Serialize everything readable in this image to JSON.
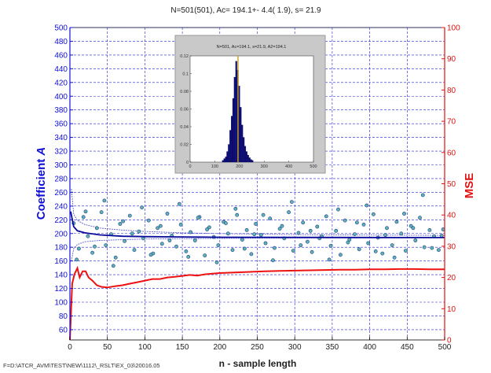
{
  "header": {
    "title": "N=501(501), Ac= 194.1+- 4.4( 1.9), s= 21.9"
  },
  "footer": {
    "path": "F=D:\\ATCR_AVM\\TEST\\NEW\\1112\\_RSLT\\EX_03\\20016.05"
  },
  "colors": {
    "left_axis": "#1010d8",
    "right_axis": "#e01010",
    "grid": "#2020d0",
    "mse_line": "#ee1111",
    "points_fill": "#5fb3b3",
    "points_edge": "#1c3a8a",
    "estimate": "#0a0a9a",
    "hist_bar": "#0c0c78",
    "hist_marker": "#c8a020",
    "inset_border": "#b0b0b0"
  },
  "chart_data": [
    {
      "type": "scatter",
      "xlabel": "n - sample length",
      "ylabel": "Coefficient A",
      "ylabel_prefix": "Coefficient",
      "ylabel_symbol": "A",
      "y2label": "MSE",
      "xlim": [
        0,
        500
      ],
      "ylim": [
        45,
        500
      ],
      "y2lim": [
        0,
        100
      ],
      "grid": true,
      "x_ticks": [
        "0",
        "50",
        "100",
        "150",
        "200",
        "250",
        "300",
        "350",
        "400",
        "450",
        "500"
      ],
      "y_ticks": [
        "60",
        "80",
        "100",
        "120",
        "140",
        "160",
        "180",
        "200",
        "220",
        "240",
        "260",
        "280",
        "300",
        "320",
        "340",
        "360",
        "380",
        "400",
        "420",
        "440",
        "460",
        "480",
        "500"
      ],
      "y2_ticks": [
        "0",
        "10",
        "20",
        "30",
        "40",
        "50",
        "60",
        "70",
        "80",
        "90",
        "100"
      ],
      "series": [
        {
          "role": "samples",
          "x": [
            5,
            12,
            18,
            24,
            30,
            36,
            42,
            48,
            55,
            61,
            67,
            73,
            80,
            86,
            92,
            98,
            105,
            111,
            117,
            123,
            130,
            136,
            142,
            148,
            155,
            161,
            167,
            173,
            180,
            186,
            192,
            198,
            205,
            211,
            217,
            223,
            230,
            236,
            242,
            248,
            255,
            261,
            267,
            273,
            280,
            286,
            292,
            298,
            305,
            311,
            317,
            323,
            330,
            336,
            342,
            348,
            355,
            361,
            367,
            373,
            380,
            386,
            392,
            398,
            405,
            411,
            417,
            423,
            430,
            436,
            442,
            448,
            455,
            461,
            467,
            473,
            480,
            486,
            492,
            498,
            9,
            21,
            33,
            46,
            58,
            71,
            83,
            96,
            108,
            121,
            133,
            146,
            158,
            171,
            183,
            196,
            208,
            221,
            233,
            246,
            258,
            271,
            283,
            296,
            308,
            321,
            333,
            346,
            358,
            371,
            383,
            396,
            408,
            421,
            433,
            446,
            458,
            471,
            483,
            496
          ],
          "y": [
            215,
            178,
            224,
            196,
            172,
            208,
            231,
            183,
            199,
            165,
            214,
            189,
            226,
            176,
            203,
            193,
            219,
            171,
            208,
            185,
            229,
            197,
            181,
            213,
            174,
            202,
            190,
            224,
            168,
            209,
            195,
            183,
            217,
            200,
            176,
            227,
            191,
            205,
            170,
            214,
            198,
            186,
            222,
            179,
            207,
            193,
            231,
            175,
            201,
            216,
            188,
            173,
            210,
            196,
            225,
            182,
            204,
            169,
            219,
            191,
            199,
            177,
            213,
            186,
            228,
            194,
            171,
            208,
            183,
            217,
            200,
            175,
            211,
            190,
            223,
            180,
            205,
            196,
            176,
            206,
            162,
            232,
            181,
            248,
            153,
            218,
            200,
            238,
            169,
            211,
            190,
            243,
            166,
            223,
            206,
            158,
            215,
            236,
            178,
            199,
            227,
            161,
            211,
            246,
            183,
            204,
            193,
            162,
            235,
            187,
            216,
            241,
            174,
            198,
            165,
            229,
            208,
            256,
            179,
            197
          ]
        },
        {
          "role": "estimate",
          "x": [
            1,
            5,
            10,
            20,
            40,
            70,
            100,
            150,
            200,
            300,
            400,
            500
          ],
          "y": [
            232,
            210,
            204,
            201,
            198,
            196,
            195.5,
            195,
            194.6,
            194.3,
            194.2,
            194.1
          ]
        },
        {
          "role": "confidence-bounds",
          "x": [
            2,
            5,
            10,
            20,
            40,
            70,
            100,
            150,
            200,
            300,
            400,
            500
          ],
          "upper": [
            265,
            228,
            219,
            213,
            208,
            205,
            203,
            201,
            200,
            198.5,
            197.8,
            197.3
          ],
          "lower": [
            160,
            178,
            184,
            188,
            190,
            191,
            192,
            192.5,
            193,
            193.5,
            193.8,
            194.0
          ]
        },
        {
          "role": "mse",
          "axis": "right",
          "x": [
            0,
            3,
            6,
            10,
            13,
            17,
            21,
            25,
            30,
            36,
            42,
            50,
            60,
            70,
            80,
            90,
            100,
            110,
            120,
            130,
            140,
            150,
            160,
            170,
            180,
            190,
            200,
            220,
            240,
            260,
            280,
            300,
            320,
            340,
            360,
            380,
            400,
            420,
            440,
            460,
            480,
            500
          ],
          "y": [
            0,
            18,
            21,
            23,
            20,
            22,
            22,
            20,
            19,
            17.5,
            17,
            16.8,
            17.2,
            17.5,
            18,
            18.5,
            19,
            19.5,
            19.5,
            20,
            20.2,
            20.5,
            20.8,
            20.6,
            21,
            21.2,
            21.4,
            21.6,
            21.8,
            22,
            22.1,
            22.2,
            22.3,
            22.4,
            22.5,
            22.5,
            22.6,
            22.6,
            22.7,
            22.7,
            22.6,
            22.6
          ]
        }
      ]
    },
    {
      "type": "bar",
      "title": "N=501,   Ac=194.1,   s=21.9,   A2=194.1",
      "xlim": [
        0,
        500
      ],
      "ylim": [
        0,
        0.12
      ],
      "x_ticks": [
        "0",
        "100",
        "200",
        "300",
        "400",
        "500"
      ],
      "y_ticks": [
        "0",
        "0.02",
        "0.04",
        "0.06",
        "0.08",
        "0.1",
        "0.12"
      ],
      "marker_x": 194.1,
      "bin_width": 6,
      "categories": [
        133,
        139,
        145,
        151,
        157,
        163,
        169,
        175,
        181,
        187,
        193,
        199,
        205,
        211,
        217,
        223,
        229,
        235,
        241,
        247,
        253
      ],
      "values": [
        0.002,
        0.004,
        0.006,
        0.012,
        0.02,
        0.036,
        0.052,
        0.072,
        0.096,
        0.114,
        0.104,
        0.086,
        0.062,
        0.042,
        0.028,
        0.018,
        0.012,
        0.008,
        0.005,
        0.003,
        0.002
      ]
    }
  ]
}
